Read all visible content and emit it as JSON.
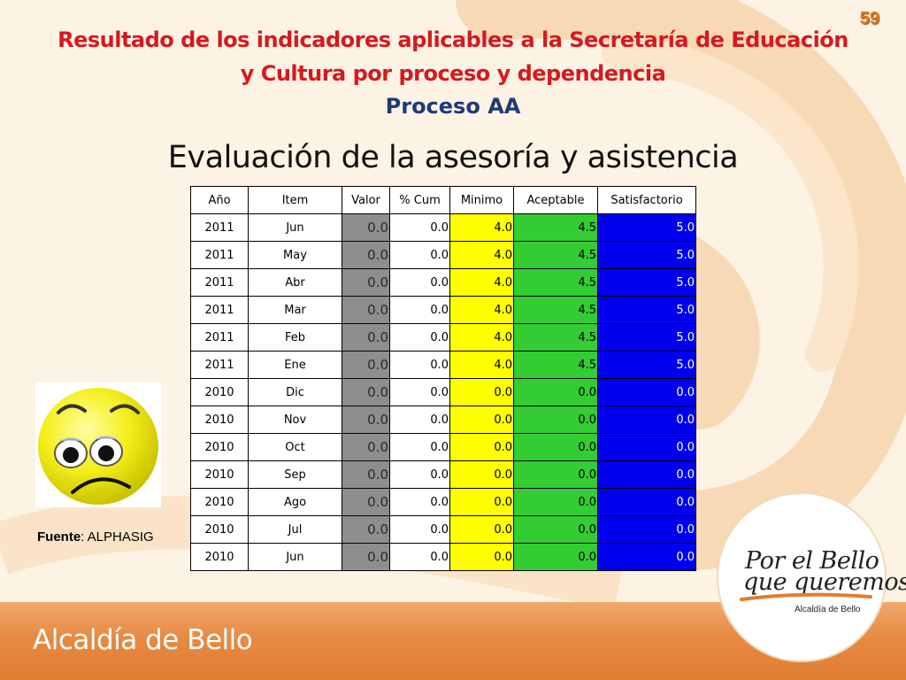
{
  "page_number": "59",
  "title": "Resultado de los indicadores aplicables a la Secretaría de Educación y Cultura por proceso y dependencia",
  "subtitle": "Proceso AA",
  "heading": "Evaluación de la asesoría y asistencia",
  "table": {
    "headers": [
      "Año",
      "Item",
      "Valor",
      "% Cum",
      "Minimo",
      "Aceptable",
      "Satisfactorio"
    ],
    "rows": [
      [
        "2011",
        "Jun",
        "0.0",
        "0.0",
        "4.0",
        "4.5",
        "5.0"
      ],
      [
        "2011",
        "May",
        "0.0",
        "0.0",
        "4.0",
        "4.5",
        "5.0"
      ],
      [
        "2011",
        "Abr",
        "0.0",
        "0.0",
        "4.0",
        "4.5",
        "5.0"
      ],
      [
        "2011",
        "Mar",
        "0.0",
        "0.0",
        "4.0",
        "4.5",
        "5.0"
      ],
      [
        "2011",
        "Feb",
        "0.0",
        "0.0",
        "4.0",
        "4.5",
        "5.0"
      ],
      [
        "2011",
        "Ene",
        "0.0",
        "0.0",
        "4.0",
        "4.5",
        "5.0"
      ],
      [
        "2010",
        "Dic",
        "0.0",
        "0.0",
        "0.0",
        "0.0",
        "0.0"
      ],
      [
        "2010",
        "Nov",
        "0.0",
        "0.0",
        "0.0",
        "0.0",
        "0.0"
      ],
      [
        "2010",
        "Oct",
        "0.0",
        "0.0",
        "0.0",
        "0.0",
        "0.0"
      ],
      [
        "2010",
        "Sep",
        "0.0",
        "0.0",
        "0.0",
        "0.0",
        "0.0"
      ],
      [
        "2010",
        "Ago",
        "0.0",
        "0.0",
        "0.0",
        "0.0",
        "0.0"
      ],
      [
        "2010",
        "Jul",
        "0.0",
        "0.0",
        "0.0",
        "0.0",
        "0.0"
      ],
      [
        "2010",
        "Jun",
        "0.0",
        "0.0",
        "0.0",
        "0.0",
        "0.0"
      ]
    ]
  },
  "face_icon": "sad-face-icon",
  "source": {
    "label": "Fuente",
    "value": ": ALPHASIG"
  },
  "logo": {
    "line1": "Por el Bello",
    "line2": "que queremos",
    "subtitle": "Alcaldía de Bello"
  },
  "footer": "Alcaldía de Bello",
  "colors": {
    "title": "#d6191f",
    "subtitle": "#1f3a7a",
    "valor": "#8e8e8e",
    "minimo": "#ffff00",
    "aceptable": "#33cc33",
    "satisfactorio": "#0000ee",
    "footer": "#e07d33"
  }
}
